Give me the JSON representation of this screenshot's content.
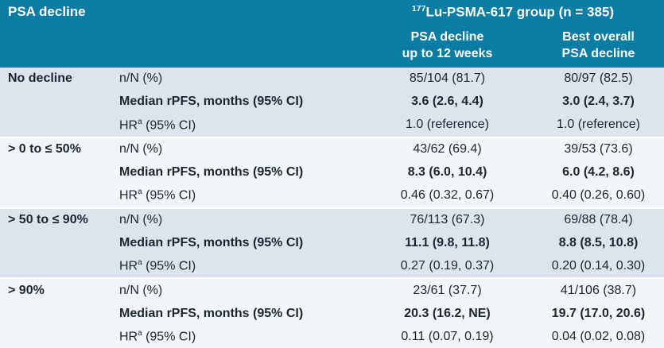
{
  "colors": {
    "header_bg": "#0b7ca3",
    "header_text": "#ffffff",
    "group_bg_dark": "#dde4ec",
    "group_bg_light": "#f2f6f9",
    "separator": "#ffffff",
    "body_text": "#1c2630"
  },
  "header": {
    "title": "PSA decline",
    "group_sup": "177",
    "group_label": "Lu-PSMA-617 group (n = 385)",
    "col_psa12": {
      "line1": "PSA decline",
      "line2": "up to 12 weeks"
    },
    "col_best": {
      "line1": "Best overall",
      "line2": "PSA decline"
    }
  },
  "groups": [
    {
      "label": "No decline",
      "rows": [
        {
          "label": "n/N (%)",
          "psa12": "85/104 (81.7)",
          "best": "80/97 (82.5)"
        },
        {
          "label": "Median rPFS, months (95% CI)",
          "psa12": "3.6 (2.6, 4.4)",
          "best": "3.0 (2.4, 3.7)"
        },
        {
          "label": "HR",
          "label_sup": "a",
          "label_rest": " (95% CI)",
          "psa12": "1.0 (reference)",
          "best": "1.0 (reference)"
        }
      ]
    },
    {
      "label": "> 0 to ≤ 50%",
      "rows": [
        {
          "label": "n/N (%)",
          "psa12": "43/62 (69.4)",
          "best": "39/53 (73.6)"
        },
        {
          "label": "Median rPFS, months (95% CI)",
          "psa12": "8.3 (6.0, 10.4)",
          "best": "6.0 (4.2, 8.6)"
        },
        {
          "label": "HR",
          "label_sup": "a",
          "label_rest": " (95% CI)",
          "psa12": "0.46 (0.32, 0.67)",
          "best": "0.40 (0.26, 0.60)"
        }
      ]
    },
    {
      "label": "> 50 to ≤ 90%",
      "rows": [
        {
          "label": "n/N (%)",
          "psa12": "76/113 (67.3)",
          "best": "69/88 (78.4)"
        },
        {
          "label": "Median rPFS, months (95% CI)",
          "psa12": "11.1 (9.8, 11.8)",
          "best": "8.8 (8.5, 10.8)"
        },
        {
          "label": "HR",
          "label_sup": "a",
          "label_rest": " (95% CI)",
          "psa12": "0.27 (0.19, 0.37)",
          "best": "0.20 (0.14, 0.30)"
        }
      ]
    },
    {
      "label": "> 90%",
      "rows": [
        {
          "label": "n/N (%)",
          "psa12": "23/61 (37.7)",
          "best": "41/106 (38.7)"
        },
        {
          "label": "Median rPFS, months (95% CI)",
          "psa12": "20.3 (16.2, NE)",
          "best": "19.7 (17.0, 20.6)"
        },
        {
          "label": "HR",
          "label_sup": "a",
          "label_rest": " (95% CI)",
          "psa12": "0.11 (0.07, 0.19)",
          "best": "0.04 (0.02, 0.08)"
        }
      ]
    }
  ]
}
